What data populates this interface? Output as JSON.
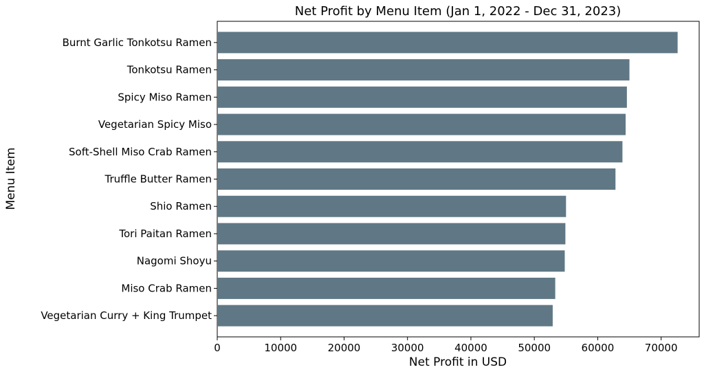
{
  "chart_data": {
    "type": "bar",
    "orientation": "horizontal",
    "title": "Net Profit by Menu Item (Jan 1, 2022 - Dec 31, 2023)",
    "xlabel": "Net Profit in USD",
    "ylabel": "Menu Item",
    "xlim": [
      0,
      76000
    ],
    "xticks": [
      0,
      10000,
      20000,
      30000,
      40000,
      50000,
      60000,
      70000
    ],
    "grid": false,
    "bar_color": "#607885",
    "categories": [
      "Burnt Garlic Tonkotsu Ramen",
      "Tonkotsu Ramen",
      "Spicy Miso Ramen",
      "Vegetarian Spicy Miso",
      "Soft-Shell Miso Crab Ramen",
      "Truffle Butter Ramen",
      "Shio Ramen",
      "Tori Paitan Ramen",
      "Nagomi Shoyu",
      "Miso Crab Ramen",
      "Vegetarian Curry + King Trumpet"
    ],
    "values": [
      72600,
      65000,
      64600,
      64400,
      63900,
      62800,
      55000,
      54900,
      54800,
      53300,
      52900
    ]
  }
}
